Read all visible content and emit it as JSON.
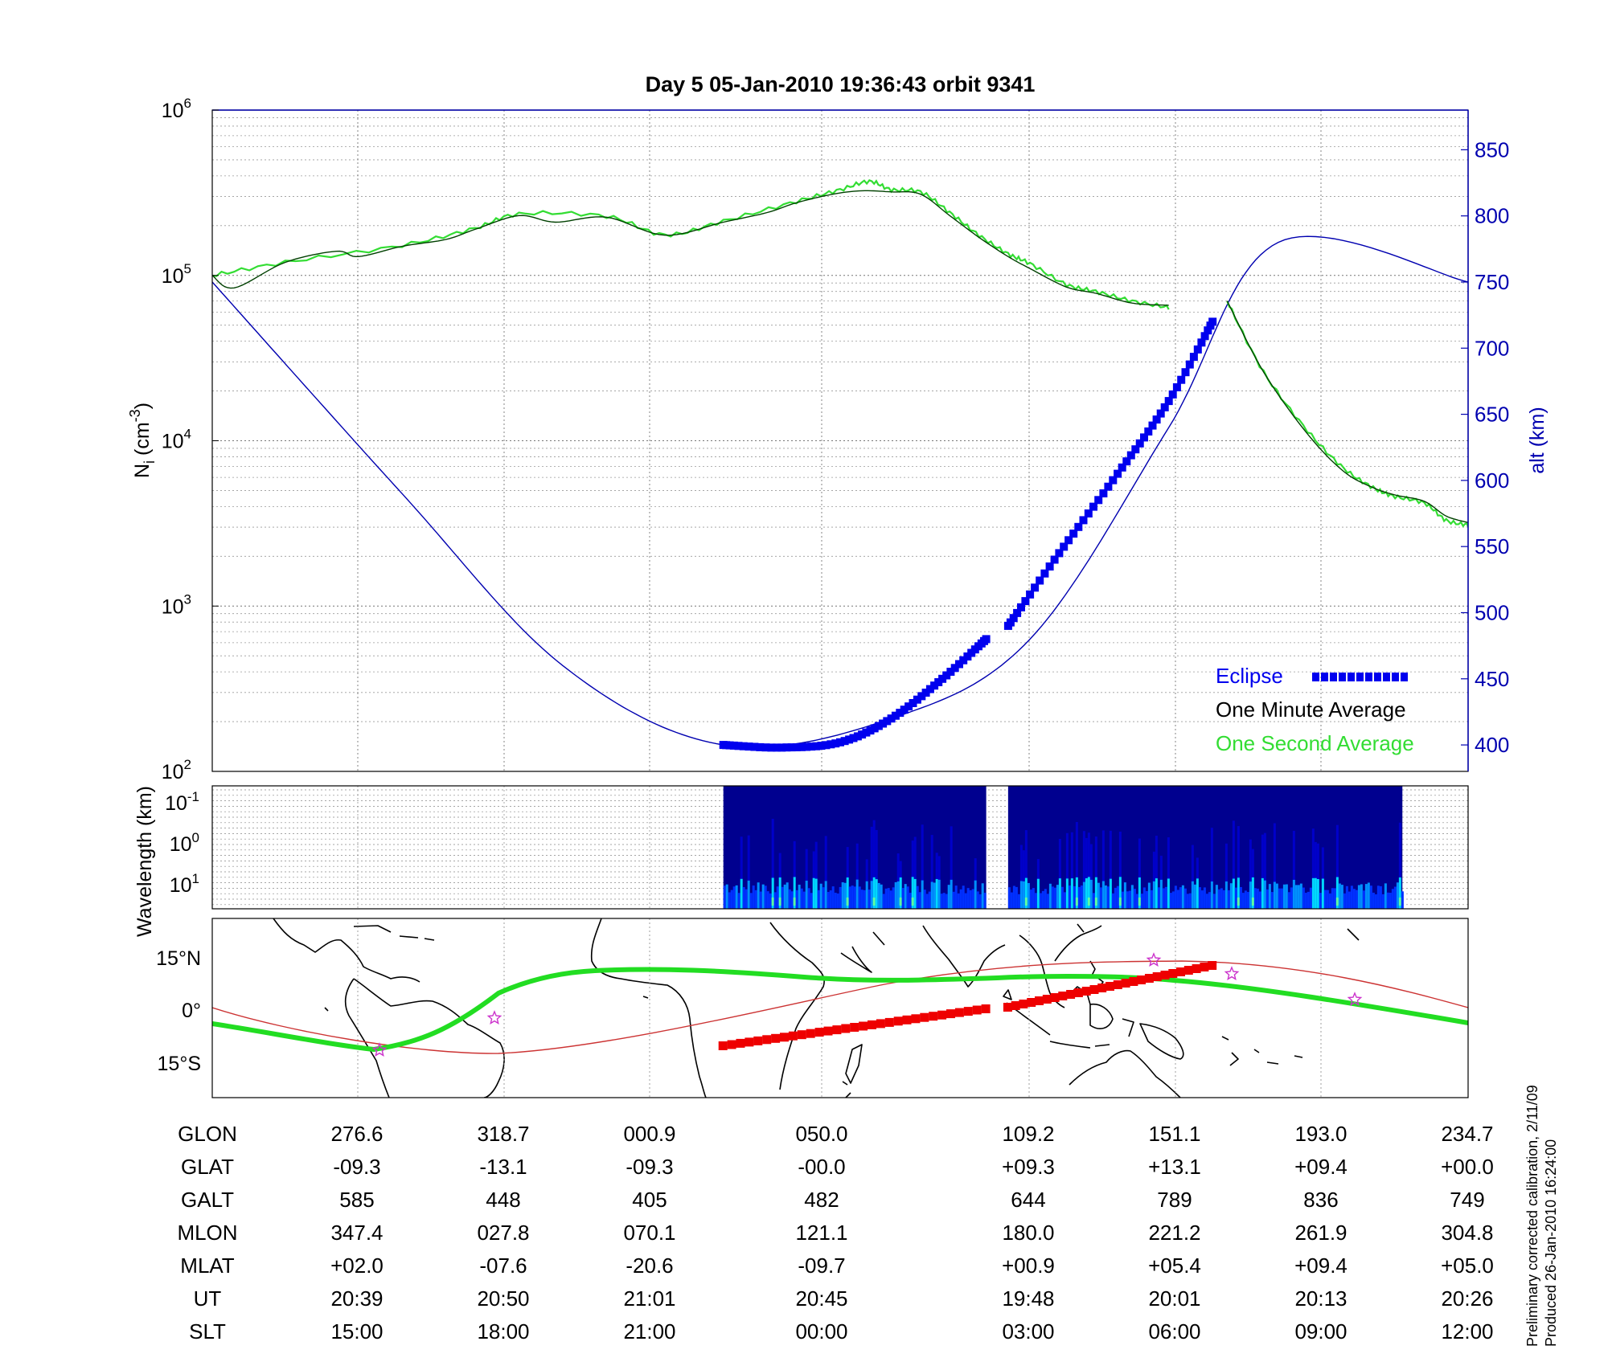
{
  "title": "Day 5  05-Jan-2010 19:36:43   orbit 9341",
  "colors": {
    "density_minute": "#004000",
    "density_second": "#33dd33",
    "altitude": "#0000b0",
    "eclipse": "#0000ee",
    "eclipse_track": "#ee0000",
    "ground_track": "#22dd22",
    "orbit_curve": "#cc3333",
    "star": "#cc33cc"
  },
  "chart_data": [
    {
      "type": "line",
      "panel": "density",
      "ylabel_base": "N",
      "ylabel_sub": "i",
      "ylabel_unit": "(cm",
      "ylabel_sup": "-3",
      "ylabel_close": ")",
      "yscale": "log",
      "ylim": [
        100,
        1000000
      ],
      "yticks": [
        {
          "base": "10",
          "exp": "2",
          "value": 100
        },
        {
          "base": "10",
          "exp": "3",
          "value": 1000
        },
        {
          "base": "10",
          "exp": "4",
          "value": 10000
        },
        {
          "base": "10",
          "exp": "5",
          "value": 100000
        },
        {
          "base": "10",
          "exp": "6",
          "value": 1000000
        }
      ],
      "y2label": "alt (km)",
      "y2lim": [
        380,
        880
      ],
      "y2ticks": [
        "400",
        "450",
        "500",
        "550",
        "600",
        "650",
        "700",
        "750",
        "800",
        "850"
      ],
      "xlim": [
        0,
        8.6
      ],
      "grid": true,
      "series": [
        {
          "name": "One Minute Average",
          "segments": [
            [
              [
                0,
                100000
              ],
              [
                0.15,
                84000
              ],
              [
                0.5,
                120000
              ],
              [
                0.85,
                140000
              ],
              [
                1.0,
                130000
              ],
              [
                1.3,
                150000
              ],
              [
                1.6,
                165000
              ],
              [
                1.8,
                190000
              ],
              [
                2.1,
                230000
              ],
              [
                2.35,
                210000
              ],
              [
                2.7,
                225000
              ],
              [
                3.1,
                175000
              ],
              [
                3.5,
                210000
              ],
              [
                3.8,
                240000
              ],
              [
                4.0,
                275000
              ],
              [
                4.25,
                310000
              ],
              [
                4.45,
                325000
              ],
              [
                4.65,
                320000
              ],
              [
                4.85,
                310000
              ],
              [
                5.05,
                230000
              ],
              [
                5.25,
                170000
              ],
              [
                5.45,
                130000
              ],
              [
                5.6,
                110000
              ],
              [
                5.85,
                85000
              ],
              [
                6.05,
                78000
              ],
              [
                6.3,
                68000
              ],
              [
                6.55,
                66000
              ]
            ],
            [
              [
                6.95,
                70000
              ],
              [
                7.2,
                26000
              ],
              [
                7.5,
                11000
              ],
              [
                7.75,
                6500
              ],
              [
                7.95,
                5200
              ],
              [
                8.1,
                4700
              ],
              [
                8.3,
                4300
              ],
              [
                8.45,
                3500
              ],
              [
                8.6,
                3200
              ]
            ]
          ]
        },
        {
          "name": "One Second Average",
          "segments": [
            [
              [
                0,
                100000
              ],
              [
                0.5,
                120000
              ],
              [
                1.3,
                152000
              ],
              [
                1.8,
                193000
              ],
              [
                2.1,
                235000
              ],
              [
                2.7,
                228000
              ],
              [
                3.1,
                176000
              ],
              [
                3.5,
                213000
              ],
              [
                4.0,
                280000
              ],
              [
                4.3,
                330000
              ],
              [
                4.5,
                370000
              ],
              [
                4.65,
                330000
              ],
              [
                4.85,
                320000
              ],
              [
                5.05,
                240000
              ],
              [
                5.25,
                175000
              ],
              [
                5.45,
                135000
              ],
              [
                5.6,
                118000
              ],
              [
                5.85,
                88000
              ],
              [
                6.05,
                80000
              ],
              [
                6.3,
                70000
              ],
              [
                6.55,
                64000
              ]
            ],
            [
              [
                6.95,
                70000
              ],
              [
                7.2,
                26000
              ],
              [
                7.5,
                11500
              ],
              [
                7.75,
                6800
              ],
              [
                7.95,
                5200
              ],
              [
                8.1,
                4600
              ],
              [
                8.3,
                4200
              ],
              [
                8.45,
                3300
              ],
              [
                8.6,
                3100
              ]
            ]
          ]
        }
      ],
      "altitude_curve_km": [
        [
          0,
          750
        ],
        [
          1.3,
          590
        ],
        [
          2.4,
          460
        ],
        [
          3.5,
          400
        ],
        [
          4.65,
          420
        ],
        [
          5.6,
          480
        ],
        [
          6.55,
          640
        ],
        [
          7.3,
          780
        ],
        [
          8.6,
          750
        ]
      ],
      "eclipse_km": [
        [
          [
            3.5,
            400
          ],
          [
            3.9,
            398
          ],
          [
            4.3,
            402
          ],
          [
            4.65,
            420
          ],
          [
            5.0,
            450
          ],
          [
            5.3,
            480
          ]
        ],
        [
          [
            5.45,
            490
          ],
          [
            5.8,
            545
          ],
          [
            6.2,
            605
          ],
          [
            6.55,
            660
          ],
          [
            6.85,
            720
          ]
        ]
      ],
      "legend_placement": "bottom-right",
      "legend": {
        "eclipse": "Eclipse",
        "minute": "One Minute Average",
        "second": "One Second Average"
      }
    },
    {
      "type": "heatmap",
      "panel": "spectrogram",
      "ylabel": "Wavelength (km)",
      "yticks": [
        {
          "base": "10",
          "exp": "-1"
        },
        {
          "base": "10",
          "exp": "0"
        },
        {
          "base": "10",
          "exp": "1"
        }
      ],
      "colormap": [
        "#00008f",
        "#0000d0",
        "#0030ff",
        "#0090ff",
        "#00d8ff",
        "#60ffa0",
        "#d0ff40"
      ],
      "blocks_x": [
        [
          3.5,
          5.3
        ],
        [
          5.45,
          8.15
        ]
      ]
    },
    {
      "type": "map",
      "panel": "ground-track",
      "yticks": [
        "15°N",
        "0°",
        "15°S"
      ],
      "ylim": [
        -25,
        26
      ],
      "xlim_deg_lon": [
        256,
        614.7
      ]
    }
  ],
  "table": {
    "row_labels": [
      "GLON",
      "GLAT",
      "GALT",
      "MLON",
      "MLAT",
      "UT",
      "SLT"
    ],
    "columns": [
      [
        "276.6",
        "-09.3",
        "585",
        "347.4",
        "+02.0",
        "20:39",
        "15:00"
      ],
      [
        "318.7",
        "-13.1",
        "448",
        "027.8",
        "-07.6",
        "20:50",
        "18:00"
      ],
      [
        "000.9",
        "-09.3",
        "405",
        "070.1",
        "-20.6",
        "21:01",
        "21:00"
      ],
      [
        "050.0",
        "-00.0",
        "482",
        "121.1",
        "-09.7",
        "20:45",
        "00:00"
      ],
      [
        "109.2",
        "+09.3",
        "644",
        "180.0",
        "+00.9",
        "19:48",
        "03:00"
      ],
      [
        "151.1",
        "+13.1",
        "789",
        "221.2",
        "+05.4",
        "20:01",
        "06:00"
      ],
      [
        "193.0",
        "+09.4",
        "836",
        "261.9",
        "+09.4",
        "20:13",
        "09:00"
      ],
      [
        "234.7",
        "+00.0",
        "749",
        "304.8",
        "+05.0",
        "20:26",
        "12:00"
      ]
    ]
  },
  "side_notes": {
    "line1": "Preliminary corrected calibration, 2/11/09",
    "line2": "Produced 26-Jan-2010 16:24:00"
  }
}
